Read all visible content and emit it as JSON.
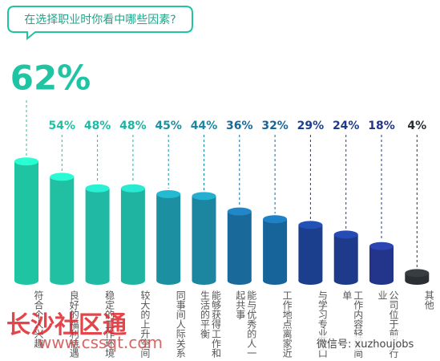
{
  "chart_data": {
    "type": "bar",
    "title": "在选择职业时你看中哪些因素?",
    "categories": [
      "符合个人兴趣",
      "良好的福利待遇",
      "稳定的工作环境",
      "较大的上升空间",
      "同事间人际关系",
      "能够获得工作和生活的平衡",
      "能与优秀的人一起共事",
      "工作地点离家近",
      "与学习专业对口",
      "工作内容轻松简单",
      "公司位于前沿行业",
      "其他"
    ],
    "values": [
      62,
      54,
      48,
      48,
      45,
      44,
      36,
      32,
      29,
      24,
      18,
      4
    ],
    "value_labels": [
      "62%",
      "54%",
      "48%",
      "48%",
      "45%",
      "44%",
      "36%",
      "32%",
      "29%",
      "24%",
      "18%",
      "4%"
    ],
    "colors": [
      "#1fc4a2",
      "#22c0a3",
      "#20b9a3",
      "#1fb4a1",
      "#1c8fa1",
      "#1c86a0",
      "#19699a",
      "#17649a",
      "#1b3f8d",
      "#1e3a8b",
      "#22358a",
      "#2b2f33"
    ],
    "watermarks": [
      "长沙社区通",
      "www.cssqt.com",
      "微信号: xuzhoujobs"
    ]
  }
}
